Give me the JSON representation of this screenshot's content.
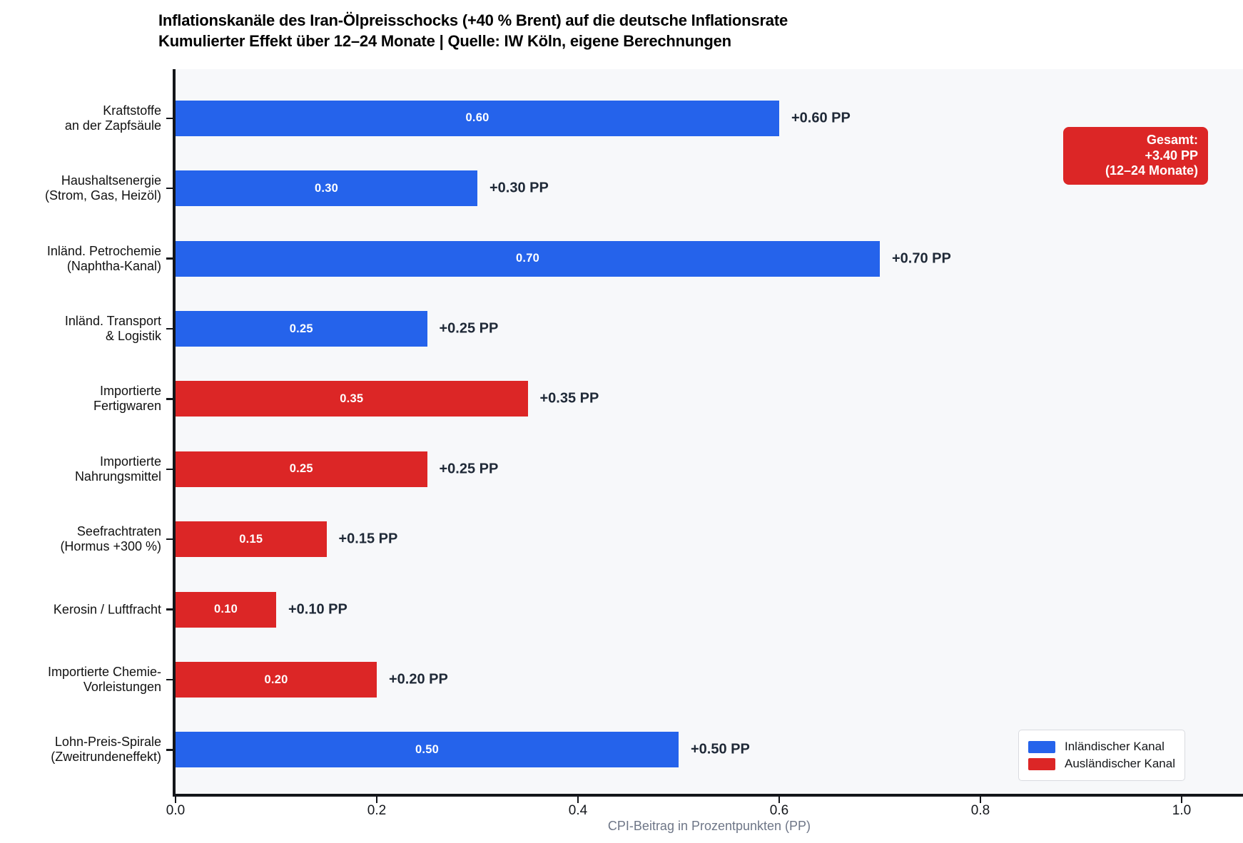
{
  "title": {
    "line1": "Inflationskanäle des Iran-Ölpreisschocks (+40 % Brent) auf die deutsche Inflationsrate",
    "line2": "Kumulierter Effekt über 12–24 Monate | Quelle: IW Köln, eigene Berechnungen"
  },
  "colors": {
    "domestic": "#2563eb",
    "foreign": "#dc2626",
    "plot_background": "#f7f8fa",
    "outside_label_text": "#1f2937",
    "annotation_background": "#dc2626",
    "xlabel_text": "#6e7687",
    "spine": "#14161a"
  },
  "chart_data": {
    "type": "bar",
    "orientation": "horizontal",
    "title": "Inflationskanäle des Iran-Ölpreisschocks (+40 % Brent) auf die deutsche Inflationsrate",
    "subtitle": "Kumulierter Effekt über 12–24 Monate | Quelle: IW Köln, eigene Berechnungen",
    "xlabel": "CPI-Beitrag in Prozentpunkten (PP)",
    "xlim": [
      0,
      1.06
    ],
    "xticks": [
      0,
      0.2,
      0.4,
      0.6,
      0.8,
      1.0
    ],
    "xtick_labels": [
      "0.0",
      "0.2",
      "0.4",
      "0.6",
      "0.8",
      "1.0"
    ],
    "grid": false,
    "legend_position": "lower right",
    "bars": [
      {
        "category_lines": [
          "Kraftstoffe",
          "an der Zapfsäule"
        ],
        "value": 0.6,
        "bar_label": "0.60",
        "outside_label": "+0.60 PP",
        "channel": "domestic"
      },
      {
        "category_lines": [
          "Haushaltsenergie",
          "(Strom, Gas, Heizöl)"
        ],
        "value": 0.3,
        "bar_label": "0.30",
        "outside_label": "+0.30 PP",
        "channel": "domestic"
      },
      {
        "category_lines": [
          "Inländ. Petrochemie",
          "(Naphtha-Kanal)"
        ],
        "value": 0.7,
        "bar_label": "0.70",
        "outside_label": "+0.70 PP",
        "channel": "domestic"
      },
      {
        "category_lines": [
          "Inländ. Transport",
          "& Logistik"
        ],
        "value": 0.25,
        "bar_label": "0.25",
        "outside_label": "+0.25 PP",
        "channel": "domestic"
      },
      {
        "category_lines": [
          "Importierte",
          "Fertigwaren"
        ],
        "value": 0.35,
        "bar_label": "0.35",
        "outside_label": "+0.35 PP",
        "channel": "foreign"
      },
      {
        "category_lines": [
          "Importierte",
          "Nahrungsmittel"
        ],
        "value": 0.25,
        "bar_label": "0.25",
        "outside_label": "+0.25 PP",
        "channel": "foreign"
      },
      {
        "category_lines": [
          "Seefrachtraten",
          "(Hormus +300 %)"
        ],
        "value": 0.15,
        "bar_label": "0.15",
        "outside_label": "+0.15 PP",
        "channel": "foreign"
      },
      {
        "category_lines": [
          "Kerosin / Luftfracht"
        ],
        "value": 0.1,
        "bar_label": "0.10",
        "outside_label": "+0.10 PP",
        "channel": "foreign"
      },
      {
        "category_lines": [
          "Importierte Chemie-",
          "Vorleistungen"
        ],
        "value": 0.2,
        "bar_label": "0.20",
        "outside_label": "+0.20 PP",
        "channel": "foreign"
      },
      {
        "category_lines": [
          "Lohn-Preis-Spirale",
          "(Zweitrundeneffekt)"
        ],
        "value": 0.5,
        "bar_label": "0.50",
        "outside_label": "+0.50 PP",
        "channel": "domestic"
      }
    ],
    "legend": [
      {
        "label": "Inländischer Kanal",
        "channel": "domestic",
        "color": "#2563eb"
      },
      {
        "label": "Ausländischer Kanal",
        "channel": "foreign",
        "color": "#dc2626"
      }
    ],
    "annotation": {
      "lines": [
        "Gesamt:",
        "+3.40 PP",
        "(12–24 Monate)"
      ],
      "total_value_pp": 3.4
    }
  }
}
